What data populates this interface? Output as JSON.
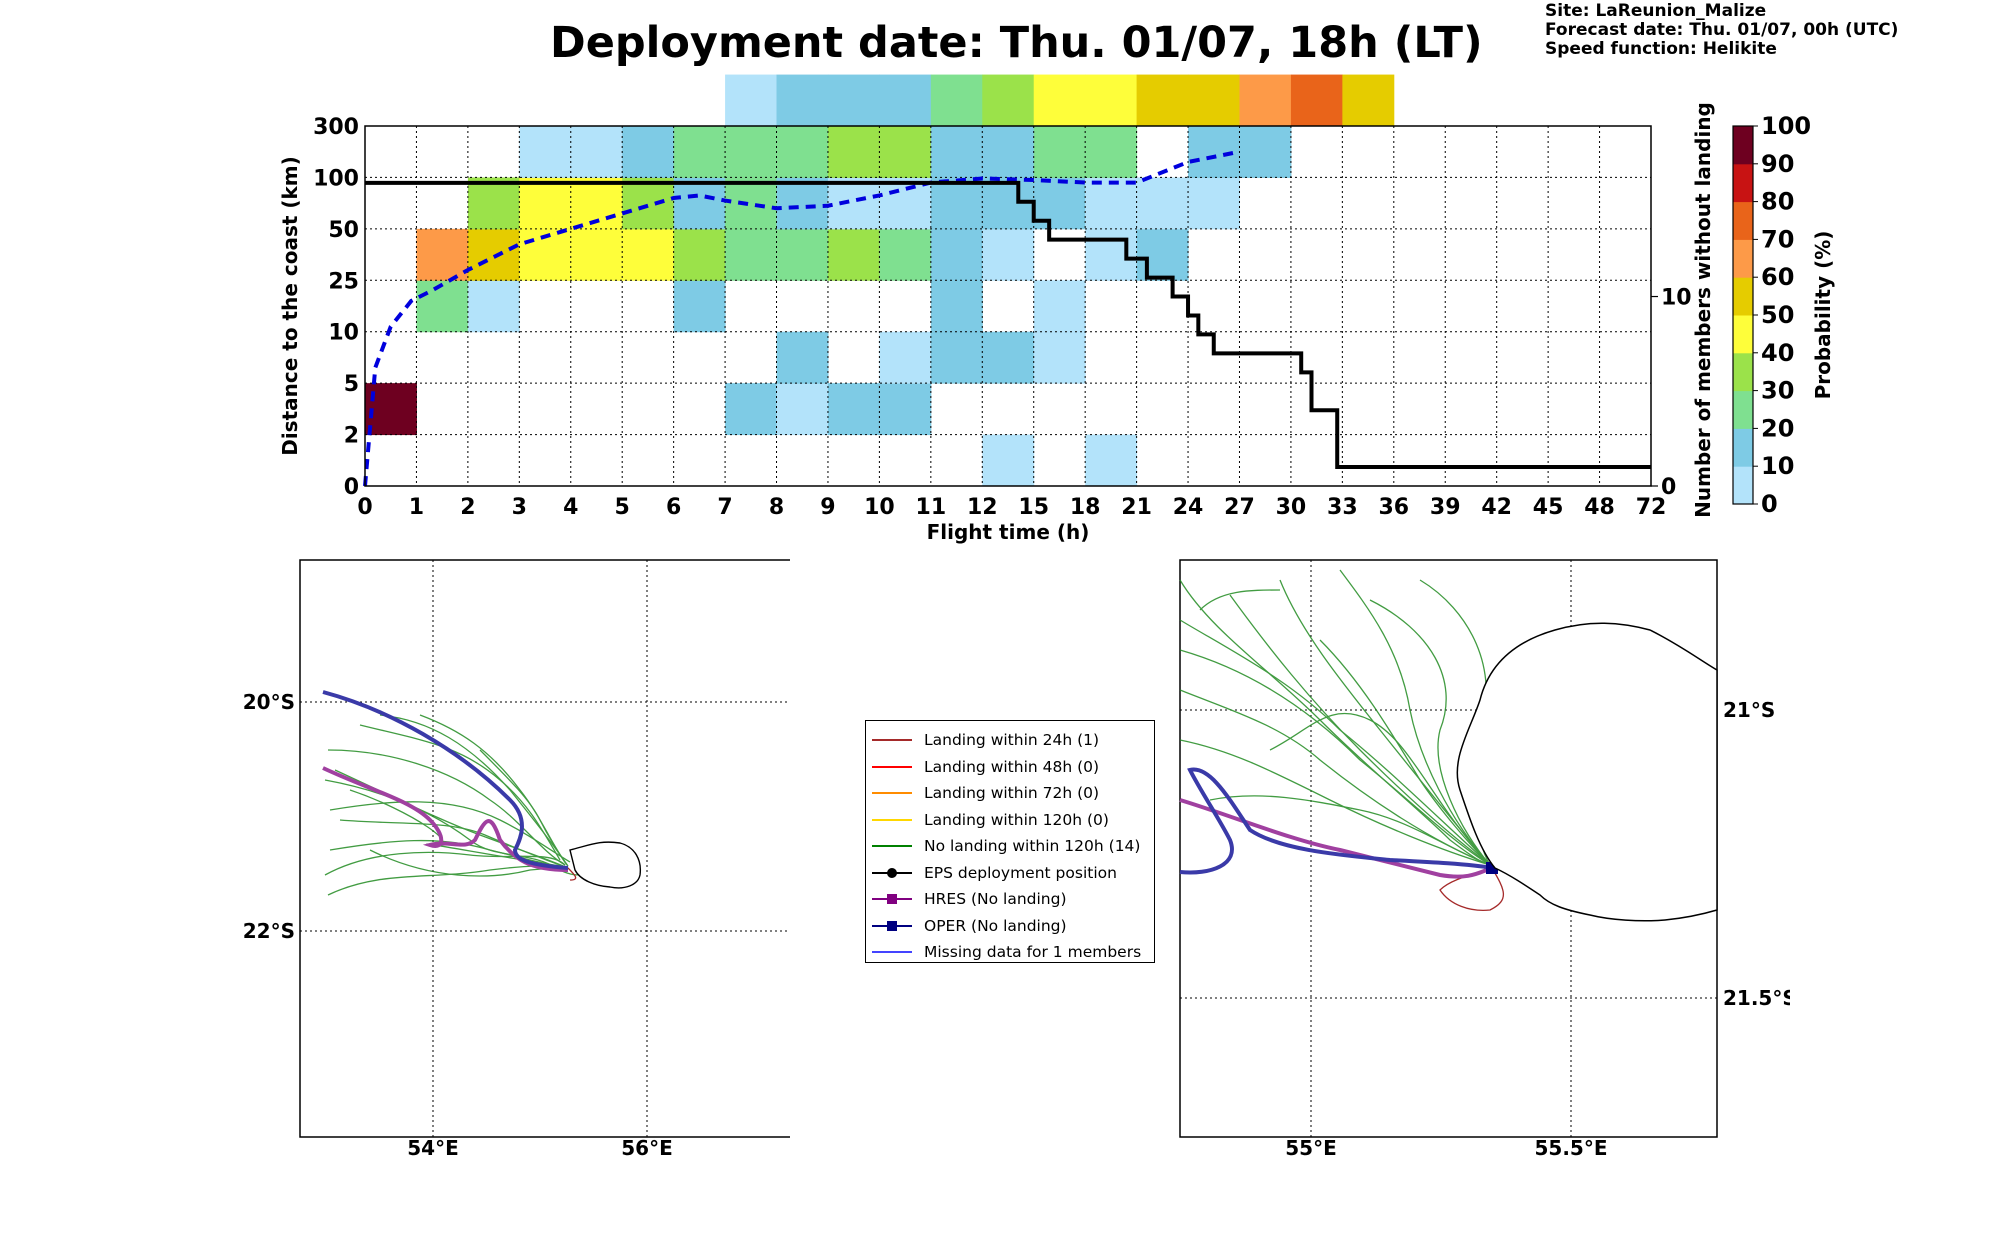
{
  "title": "Deployment date: Thu. 01/07, 18h (LT)",
  "info": {
    "site": "Site: LaReunion_Malize",
    "forecast_date": "Forecast date: Thu. 01/07, 00h (UTC)",
    "speed_function": "Speed function: Helikite"
  },
  "chart_data": [
    {
      "type": "heatmap",
      "xlabel": "Flight time (h)",
      "ylabel": "Distance to the coast (km)",
      "y2label": "Number of members without landing",
      "x_ticks": [
        "0",
        "1",
        "2",
        "3",
        "4",
        "5",
        "6",
        "7",
        "8",
        "9",
        "10",
        "11",
        "12",
        "15",
        "18",
        "21",
        "24",
        "27",
        "30",
        "33",
        "36",
        "39",
        "42",
        "45",
        "48",
        "72"
      ],
      "y_ticks": [
        "0",
        "2",
        "5",
        "10",
        "25",
        "50",
        "100",
        "300"
      ],
      "y2_ticks": [
        "0",
        "10"
      ],
      "y2lim": [
        0,
        19
      ],
      "grid": true,
      "colorbar": {
        "label": "Probability (%)",
        "ticks": [
          "0",
          "10",
          "20",
          "30",
          "40",
          "50",
          "60",
          "70",
          "80",
          "90",
          "100"
        ],
        "colors": [
          "#b3e3fa",
          "#7ecbe5",
          "#7fe090",
          "#9be24a",
          "#fefe3a",
          "#e5cc00",
          "#fd9a48",
          "#e9641a",
          "#c81313",
          "#6e0020"
        ]
      },
      "cells": [
        [
          0,
          1,
          "#6e0020"
        ],
        [
          1,
          3,
          "#7fe090"
        ],
        [
          1,
          4,
          "#fd9a48"
        ],
        [
          2,
          3,
          "#b3e3fa"
        ],
        [
          2,
          4,
          "#e5cc00"
        ],
        [
          2,
          5,
          "#9be24a"
        ],
        [
          3,
          4,
          "#fefe3a"
        ],
        [
          3,
          5,
          "#fefe3a"
        ],
        [
          3,
          6,
          "#b3e3fa"
        ],
        [
          4,
          4,
          "#fefe3a"
        ],
        [
          4,
          5,
          "#fefe3a"
        ],
        [
          4,
          6,
          "#b3e3fa"
        ],
        [
          5,
          4,
          "#fefe3a"
        ],
        [
          5,
          5,
          "#9be24a"
        ],
        [
          5,
          6,
          "#7ecbe5"
        ],
        [
          6,
          3,
          "#7ecbe5"
        ],
        [
          6,
          4,
          "#9be24a"
        ],
        [
          6,
          5,
          "#7ecbe5"
        ],
        [
          6,
          6,
          "#7fe090"
        ],
        [
          7,
          1,
          "#7ecbe5"
        ],
        [
          7,
          4,
          "#7fe090"
        ],
        [
          7,
          5,
          "#7fe090"
        ],
        [
          7,
          6,
          "#7fe090"
        ],
        [
          7,
          7,
          "#b3e3fa"
        ],
        [
          8,
          1,
          "#b3e3fa"
        ],
        [
          8,
          2,
          "#7ecbe5"
        ],
        [
          8,
          4,
          "#7fe090"
        ],
        [
          8,
          5,
          "#7ecbe5"
        ],
        [
          8,
          6,
          "#7fe090"
        ],
        [
          8,
          7,
          "#7ecbe5"
        ],
        [
          9,
          1,
          "#7ecbe5"
        ],
        [
          9,
          4,
          "#9be24a"
        ],
        [
          9,
          5,
          "#b3e3fa"
        ],
        [
          9,
          6,
          "#9be24a"
        ],
        [
          9,
          7,
          "#7ecbe5"
        ],
        [
          10,
          1,
          "#7ecbe5"
        ],
        [
          10,
          2,
          "#b3e3fa"
        ],
        [
          10,
          4,
          "#7fe090"
        ],
        [
          10,
          5,
          "#b3e3fa"
        ],
        [
          10,
          6,
          "#9be24a"
        ],
        [
          10,
          7,
          "#7ecbe5"
        ],
        [
          11,
          2,
          "#7ecbe5"
        ],
        [
          11,
          3,
          "#7ecbe5"
        ],
        [
          11,
          4,
          "#7ecbe5"
        ],
        [
          11,
          5,
          "#7ecbe5"
        ],
        [
          11,
          6,
          "#7ecbe5"
        ],
        [
          11,
          7,
          "#7fe090"
        ],
        [
          12,
          0,
          "#b3e3fa"
        ],
        [
          12,
          2,
          "#7ecbe5"
        ],
        [
          12,
          4,
          "#b3e3fa"
        ],
        [
          12,
          5,
          "#7ecbe5"
        ],
        [
          12,
          6,
          "#7ecbe5"
        ],
        [
          12,
          7,
          "#9be24a"
        ],
        [
          13,
          2,
          "#b3e3fa"
        ],
        [
          13,
          3,
          "#b3e3fa"
        ],
        [
          13,
          5,
          "#7ecbe5"
        ],
        [
          13,
          6,
          "#7fe090"
        ],
        [
          13,
          7,
          "#fefe3a"
        ],
        [
          14,
          0,
          "#b3e3fa"
        ],
        [
          14,
          4,
          "#b3e3fa"
        ],
        [
          14,
          5,
          "#b3e3fa"
        ],
        [
          14,
          6,
          "#7fe090"
        ],
        [
          14,
          7,
          "#fefe3a"
        ],
        [
          15,
          4,
          "#7ecbe5"
        ],
        [
          15,
          5,
          "#b3e3fa"
        ],
        [
          15,
          7,
          "#e5cc00"
        ],
        [
          16,
          5,
          "#b3e3fa"
        ],
        [
          16,
          6,
          "#7ecbe5"
        ],
        [
          16,
          7,
          "#e5cc00"
        ],
        [
          17,
          6,
          "#7ecbe5"
        ],
        [
          17,
          7,
          "#fd9a48"
        ],
        [
          18,
          7,
          "#e9641a"
        ],
        [
          19,
          7,
          "#e5cc00"
        ]
      ],
      "mean_distance_km": {
        "color": "#0000dd",
        "x": [
          0,
          0.2,
          0.5,
          0.9,
          1.3,
          2,
          3,
          4,
          5,
          6,
          6.5,
          7,
          8,
          9,
          10,
          11,
          12,
          13,
          14,
          15,
          16,
          17
        ],
        "y": [
          0,
          2.3,
          3.1,
          3.6,
          3.8,
          4.2,
          4.7,
          5.0,
          5.3,
          5.6,
          5.65,
          5.55,
          5.4,
          5.45,
          5.65,
          5.9,
          5.98,
          5.95,
          5.9,
          5.9,
          6.3,
          6.5
        ]
      },
      "members_without_landing": {
        "color": "#000000",
        "x": [
          0,
          12.7,
          12.7,
          13,
          13,
          13.3,
          13.3,
          14.8,
          14.8,
          15.2,
          15.2,
          15.7,
          15.7,
          16,
          16,
          16.2,
          16.2,
          16.5,
          16.5,
          18.2,
          18.2,
          18.4,
          18.4,
          18.9,
          18.9,
          25
        ],
        "y": [
          16,
          16,
          15,
          15,
          14,
          14,
          13,
          13,
          12,
          12,
          11,
          11,
          10,
          10,
          9,
          9,
          8,
          8,
          7,
          7,
          6,
          6,
          4,
          4,
          1,
          1
        ]
      }
    },
    {
      "type": "map",
      "x_ticks": [
        "54°E",
        "56°E"
      ],
      "y_ticks": [
        "20°S",
        "22°S"
      ]
    },
    {
      "type": "map",
      "x_ticks": [
        "55°E",
        "55.5°E"
      ],
      "y_ticks": [
        "21°S",
        "21.5°S"
      ]
    }
  ],
  "legend": [
    {
      "label": "Landing within 24h (1)",
      "color": "#a52a2a",
      "marker": "none"
    },
    {
      "label": "Landing within 48h (0)",
      "color": "#ff0000",
      "marker": "none"
    },
    {
      "label": "Landing within 72h (0)",
      "color": "#ff8c00",
      "marker": "none"
    },
    {
      "label": "Landing within 120h (0)",
      "color": "#ffd700",
      "marker": "none"
    },
    {
      "label": "No landing within 120h (14)",
      "color": "#008000",
      "marker": "none"
    },
    {
      "label": "EPS deployment position",
      "color": "#000000",
      "marker": "circle"
    },
    {
      "label": "HRES (No landing)",
      "color": "#800080",
      "marker": "square"
    },
    {
      "label": "OPER (No landing)",
      "color": "#000080",
      "marker": "square"
    },
    {
      "label": "Missing data for 1 members",
      "color": "#4444ff",
      "marker": "none"
    }
  ]
}
